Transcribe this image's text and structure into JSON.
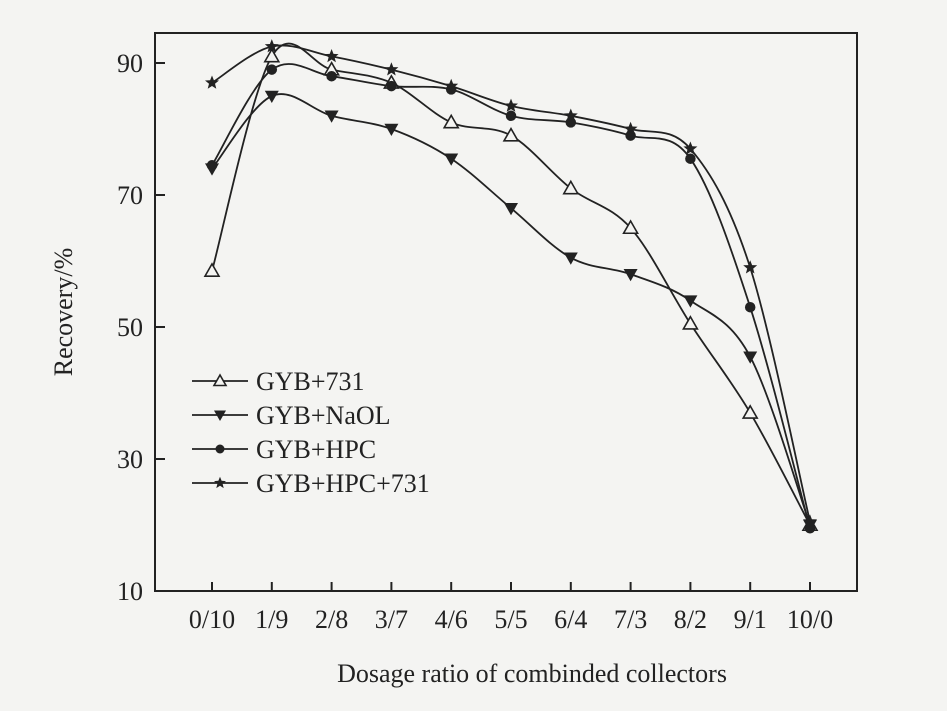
{
  "chart_data": {
    "type": "line",
    "title": "",
    "xlabel": "Dosage ratio of combinded collectors",
    "ylabel": "Recovery/%",
    "categories": [
      "0/10",
      "1/9",
      "2/8",
      "3/7",
      "4/6",
      "5/5",
      "6/4",
      "7/3",
      "8/2",
      "9/1",
      "10/0"
    ],
    "ylim": [
      10,
      95
    ],
    "yticks": [
      10,
      30,
      50,
      70,
      90
    ],
    "grid": false,
    "legend_position": "left-middle",
    "series": [
      {
        "name": "GYB+731",
        "marker": "open-triangle-up",
        "values": [
          58.5,
          91,
          89,
          87,
          81,
          79,
          71,
          65,
          50.5,
          37,
          20
        ]
      },
      {
        "name": "GYB+NaOL",
        "marker": "filled-triangle-down",
        "values": [
          74,
          85,
          82,
          80,
          75.5,
          68,
          60.5,
          58,
          54,
          45.5,
          20
        ]
      },
      {
        "name": "GYB+HPC",
        "marker": "filled-circle",
        "values": [
          74.5,
          89,
          88,
          86.5,
          86,
          82,
          81,
          79,
          75.5,
          53,
          19.5
        ]
      },
      {
        "name": "GYB+HPC+731",
        "marker": "star",
        "values": [
          87,
          92.5,
          91,
          89,
          86.5,
          83.5,
          82,
          80,
          77,
          59,
          20.5
        ]
      }
    ]
  }
}
